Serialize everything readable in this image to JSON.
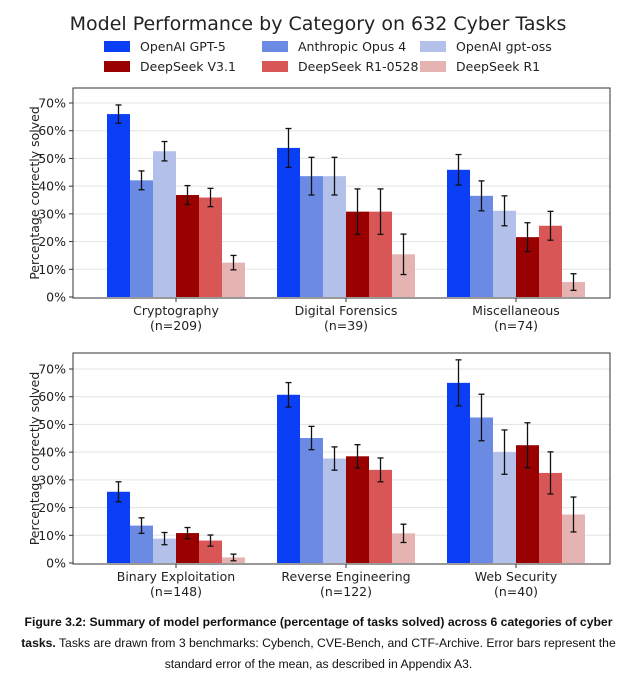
{
  "chart_data": {
    "type": "bar",
    "title": "Model Performance by Category on 632 Cyber Tasks",
    "ylabel": "Percentage correctly solved",
    "ylim": [
      0,
      75
    ],
    "yticks": [
      "0%",
      "10%",
      "20%",
      "30%",
      "40%",
      "50%",
      "60%",
      "70%"
    ],
    "grid": true,
    "legend_placement": "top",
    "series": [
      {
        "name": "OpenAI GPT-5",
        "color": "#0b3ff5"
      },
      {
        "name": "Anthropic Opus 4",
        "color": "#6a8ae3"
      },
      {
        "name": "OpenAI gpt-oss",
        "color": "#b2c0ea"
      },
      {
        "name": "DeepSeek V3.1",
        "color": "#990000"
      },
      {
        "name": "DeepSeek R1-0528",
        "color": "#d95656"
      },
      {
        "name": "DeepSeek R1",
        "color": "#e6b3b3"
      }
    ],
    "panels": [
      {
        "categories": [
          {
            "name": "Cryptography",
            "n": "(n=209)",
            "values": [
              66.0,
              42.1,
              52.6,
              36.8,
              35.9,
              12.4
            ],
            "errors": [
              3.3,
              3.4,
              3.5,
              3.4,
              3.3,
              2.6
            ]
          },
          {
            "name": "Digital Forensics",
            "n": "(n=39)",
            "values": [
              53.8,
              43.6,
              43.6,
              30.8,
              30.8,
              15.4
            ],
            "errors": [
              7.0,
              6.8,
              6.8,
              8.2,
              8.2,
              7.3
            ]
          },
          {
            "name": "Miscellaneous",
            "n": "(n=74)",
            "values": [
              45.9,
              36.5,
              31.1,
              21.6,
              25.7,
              5.4
            ],
            "errors": [
              5.5,
              5.4,
              5.4,
              5.2,
              5.2,
              3.0
            ]
          }
        ]
      },
      {
        "categories": [
          {
            "name": "Binary Exploitation",
            "n": "(n=148)",
            "values": [
              25.7,
              13.5,
              8.8,
              10.8,
              8.1,
              2.0
            ],
            "errors": [
              3.6,
              2.8,
              2.2,
              2.0,
              2.0,
              1.2
            ]
          },
          {
            "name": "Reverse Engineering",
            "n": "(n=122)",
            "values": [
              60.7,
              45.1,
              37.7,
              38.5,
              33.6,
              10.7
            ],
            "errors": [
              4.4,
              4.2,
              4.2,
              4.2,
              4.3,
              3.3
            ]
          },
          {
            "name": "Web Security",
            "n": "(n=40)",
            "values": [
              65.0,
              52.5,
              40.0,
              42.5,
              32.5,
              17.5
            ],
            "errors": [
              8.3,
              8.4,
              8.0,
              8.1,
              7.6,
              6.3
            ]
          }
        ]
      }
    ]
  },
  "caption": {
    "bold": "Figure 3.2: Summary of model performance (percentage of tasks solved) across 6 categories of cyber tasks.",
    "text": " Tasks are drawn from 3 benchmarks: Cybench, CVE-Bench, and CTF-Archive. Error bars represent the standard error of the mean, as described in Appendix A3."
  }
}
